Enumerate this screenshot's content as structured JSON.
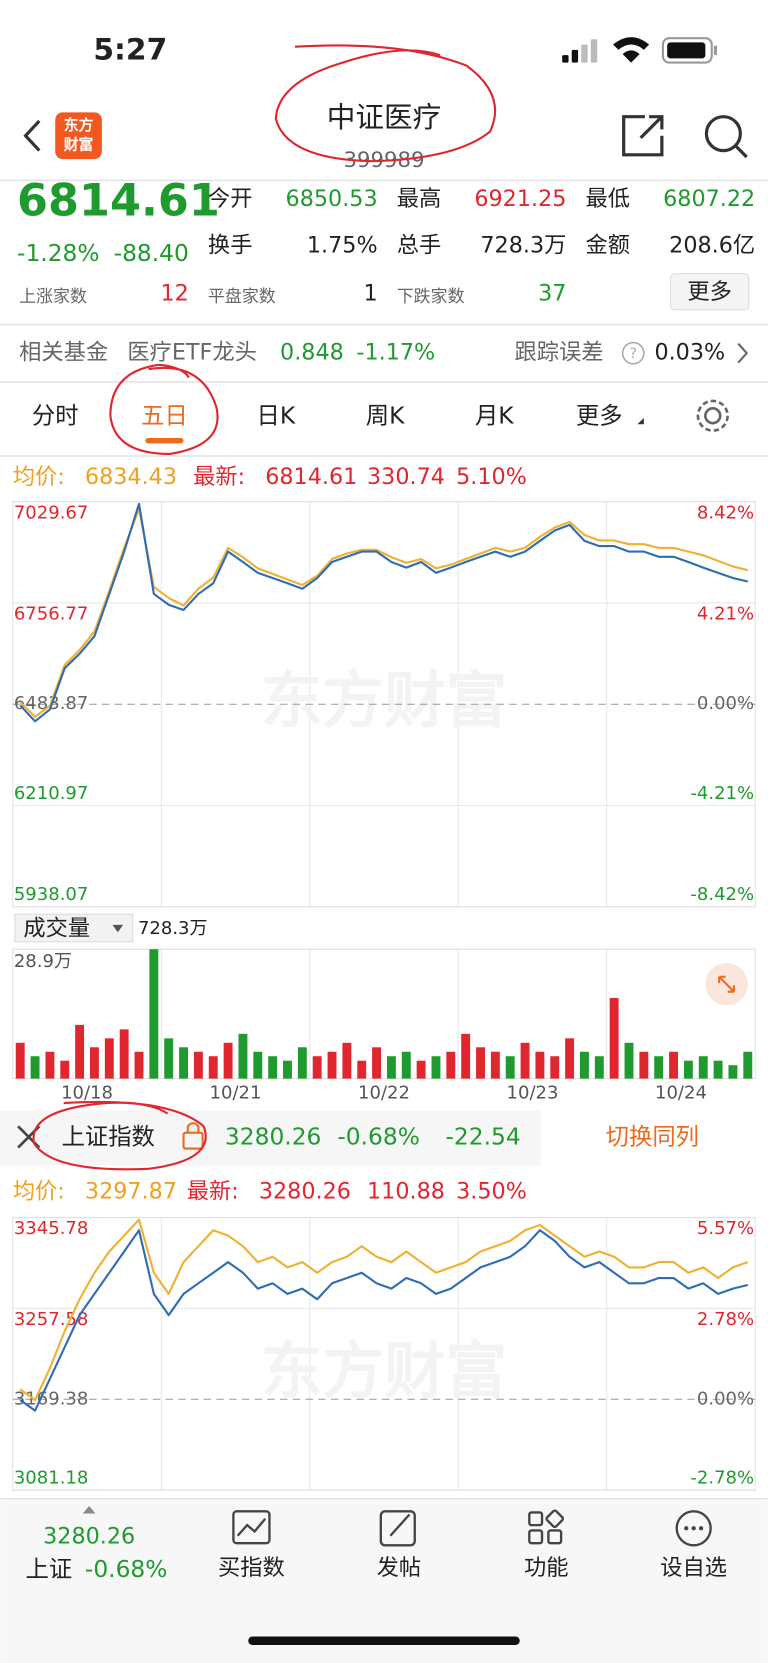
{
  "status_bar": {
    "time": "5:27"
  },
  "header": {
    "logo_line1": "东方",
    "logo_line2": "财富",
    "title": "中证医疗",
    "code": "399989"
  },
  "quote": {
    "price": "6814.61",
    "change_pct": "-1.28%",
    "change": "-88.40",
    "fields": [
      [
        "今开",
        "6850.53"
      ],
      [
        "最高",
        "6921.25"
      ],
      [
        "最低",
        "6807.22"
      ],
      [
        "换手",
        "1.75%"
      ],
      [
        "总手",
        "728.3万"
      ],
      [
        "金额",
        "208.6亿"
      ]
    ],
    "breadth": [
      [
        "上涨家数",
        "12"
      ],
      [
        "平盘家数",
        "1"
      ],
      [
        "下跌家数",
        "37"
      ]
    ],
    "more": "更多"
  },
  "fund": {
    "label": "相关基金",
    "name": "医疗ETF龙头",
    "price": "0.848",
    "change": "-1.17%",
    "tracking_label": "跟踪误差",
    "tracking_value": "0.03%"
  },
  "tabs": {
    "items": [
      "分时",
      "五日",
      "日K",
      "周K",
      "月K",
      "更多"
    ],
    "active": 1
  },
  "chart": {
    "type": "line",
    "legend": {
      "avg_label": "均价:",
      "avg": "6834.43",
      "latest_label": "最新:",
      "latest": "6814.61",
      "volume": "330.74",
      "pct": "5.10%"
    },
    "categories": [
      "10/18",
      "10/21",
      "10/22",
      "10/23",
      "10/24"
    ],
    "ylim": [
      5938.07,
      7029.67
    ],
    "yticks": [
      5938.07,
      6210.97,
      6483.87,
      6756.77,
      7029.67
    ],
    "y2lim": [
      -8.42,
      8.42
    ],
    "y2ticks": [
      {
        "value": -8.42,
        "label": "-8.42%"
      },
      {
        "value": -4.21,
        "label": "-4.21%"
      },
      {
        "value": 0,
        "label": "0.00%"
      },
      {
        "value": 4.21,
        "label": "4.21%"
      },
      {
        "value": 8.42,
        "label": "8.42%"
      }
    ],
    "series": [
      {
        "color": "#f0b030",
        "values": [
          6490,
          6450,
          6480,
          6590,
          6630,
          6680,
          6790,
          6905,
          7010,
          6800,
          6770,
          6750,
          6795,
          6825,
          6905,
          6880,
          6850,
          6835,
          6820,
          6805,
          6830,
          6875,
          6890,
          6900,
          6900,
          6880,
          6865,
          6875,
          6850,
          6860,
          6875,
          6890,
          6905,
          6895,
          6905,
          6935,
          6960,
          6975,
          6940,
          6925,
          6925,
          6915,
          6915,
          6905,
          6905,
          6895,
          6885,
          6870,
          6855,
          6845
        ]
      },
      {
        "color": "#2e6db4",
        "values": [
          6481,
          6438,
          6470,
          6581,
          6620,
          6667,
          6781,
          6895,
          7024,
          6781,
          6752,
          6738,
          6781,
          6810,
          6895,
          6867,
          6838,
          6824,
          6810,
          6795,
          6824,
          6867,
          6881,
          6895,
          6895,
          6867,
          6852,
          6867,
          6838,
          6852,
          6867,
          6881,
          6895,
          6881,
          6895,
          6924,
          6952,
          6967,
          6924,
          6910,
          6910,
          6895,
          6895,
          6881,
          6881,
          6867,
          6852,
          6838,
          6824,
          6814.61
        ]
      }
    ],
    "watermark": "东方财富",
    "volume": {
      "label": "成交量",
      "total": "728.3万",
      "ylim": [
        0,
        28.9
      ],
      "yticks": [
        {
          "value": 28.9,
          "label": "28.9万"
        }
      ],
      "up_color": "#e0262e",
      "down_color": "#1f9a2e",
      "values": [
        8,
        5,
        6,
        4,
        12,
        7,
        9,
        11,
        6,
        28.9,
        9,
        7,
        6,
        5,
        8,
        10,
        6,
        5,
        4,
        7,
        5,
        6,
        8,
        4,
        7,
        5,
        6,
        4,
        5,
        6,
        10,
        7,
        6,
        5,
        8,
        6,
        5,
        9,
        6,
        5,
        18,
        8,
        6,
        5,
        6,
        4,
        5,
        4,
        3,
        6
      ]
    }
  },
  "compare": {
    "name": "上证指数",
    "price": "3280.26",
    "change_pct": "-0.68%",
    "change": "-22.54",
    "button": "切换同列"
  },
  "chart2": {
    "type": "line",
    "legend": {
      "avg_label": "均价:",
      "avg": "3297.87",
      "latest_label": "最新:",
      "latest": "3280.26",
      "volume": "110.88",
      "pct": "3.50%"
    },
    "ylim": [
      3081.18,
      3345.78
    ],
    "yticks": [
      3081.18,
      3169.38,
      3257.58,
      3345.78
    ],
    "y2lim": [
      -2.78,
      5.57
    ],
    "y2ticks": [
      {
        "value": -2.78,
        "label": "-2.78%"
      },
      {
        "value": 0,
        "label": "0.00%"
      },
      {
        "value": 2.78,
        "label": "2.78%"
      },
      {
        "value": 5.57,
        "label": "5.57%"
      }
    ],
    "series": [
      {
        "color": "#f0b030",
        "values": [
          3179.0,
          3168.7,
          3199.6,
          3235.6,
          3266.5,
          3292.2,
          3312.8,
          3328.3,
          3343.7,
          3292.2,
          3271.6,
          3302.5,
          3318.0,
          3333.4,
          3328.3,
          3318.0,
          3302.5,
          3307.7,
          3297.4,
          3302.5,
          3292.2,
          3302.5,
          3307.7,
          3318.0,
          3307.7,
          3302.5,
          3312.8,
          3302.5,
          3292.2,
          3297.4,
          3302.5,
          3312.8,
          3318.0,
          3323.1,
          3333.4,
          3338.6,
          3328.3,
          3318.0,
          3307.7,
          3312.8,
          3307.7,
          3297.4,
          3297.4,
          3302.5,
          3302.5,
          3292.2,
          3297.4,
          3287.1,
          3297.4,
          3302.5
        ]
      },
      {
        "color": "#2e6db4",
        "values": [
          3168.7,
          3158.4,
          3189.3,
          3220.2,
          3251.1,
          3271.6,
          3292.2,
          3312.8,
          3333.4,
          3271.6,
          3251.1,
          3271.6,
          3281.9,
          3292.2,
          3302.5,
          3292.2,
          3276.8,
          3281.9,
          3271.6,
          3276.8,
          3266.5,
          3281.9,
          3287.1,
          3292.2,
          3281.9,
          3276.8,
          3287.1,
          3281.9,
          3271.6,
          3276.8,
          3287.1,
          3297.4,
          3302.5,
          3307.7,
          3318.0,
          3333.4,
          3323.1,
          3307.7,
          3297.4,
          3302.5,
          3292.2,
          3281.9,
          3281.9,
          3287.1,
          3287.1,
          3276.8,
          3281.9,
          3271.6,
          3276.8,
          3280.26
        ]
      }
    ],
    "watermark": "东方财富"
  },
  "bottom_bar": {
    "index_price": "3280.26",
    "index_name": "上证",
    "index_change": "-0.68%",
    "items": [
      "买指数",
      "发帖",
      "功能",
      "设自选"
    ]
  }
}
